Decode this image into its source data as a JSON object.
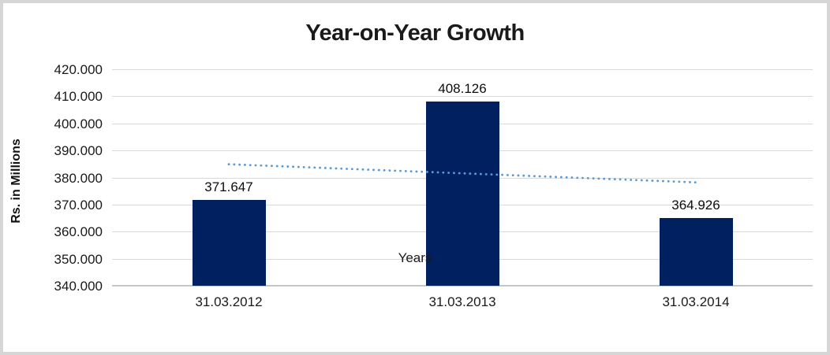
{
  "chart_data": {
    "type": "bar",
    "title": "Year-on-Year Growth",
    "xlabel": "Years",
    "ylabel": "Rs. in Millions",
    "categories": [
      "31.03.2012",
      "31.03.2013",
      "31.03.2014"
    ],
    "values": [
      371.647,
      408.126,
      364.926
    ],
    "data_labels": [
      "371.647",
      "408.126",
      "364.926"
    ],
    "y_ticks": [
      {
        "value": 420,
        "label": "420.000"
      },
      {
        "value": 410,
        "label": "410.000"
      },
      {
        "value": 400,
        "label": "400.000"
      },
      {
        "value": 390,
        "label": "390.000"
      },
      {
        "value": 380,
        "label": "380.000"
      },
      {
        "value": 370,
        "label": "370.000"
      },
      {
        "value": 360,
        "label": "360.000"
      },
      {
        "value": 350,
        "label": "350.000"
      },
      {
        "value": 340,
        "label": "340.000"
      }
    ],
    "ylim": [
      340,
      420
    ],
    "grid": true,
    "legend": "none",
    "trendline": {
      "type": "linear",
      "style": "dotted",
      "start_value": 384.9,
      "end_value": 378.2
    }
  },
  "colors": {
    "bar": "#002060",
    "trendline": "#5B9BD5",
    "gridline": "#d9d9d9",
    "axis_line": "#c6c6c6",
    "frame_border": "#d6d6d6",
    "text": "#1a1a1a"
  }
}
